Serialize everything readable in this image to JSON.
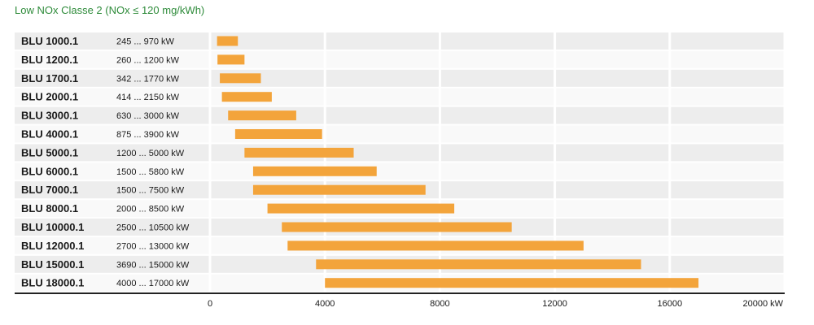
{
  "title": "Low NOx Classe 2 (NOx ≤ 120 mg/kWh)",
  "chart_data": {
    "type": "bar",
    "orientation": "horizontal",
    "variant": "floating-range",
    "title": "Low NOx Classe 2 (NOx ≤ 120 mg/kWh)",
    "unit": "kW",
    "xlim": [
      0,
      20000
    ],
    "x_ticks": [
      0,
      4000,
      8000,
      12000,
      16000,
      20000
    ],
    "x_tick_labels": [
      "0",
      "4000",
      "8000",
      "12000",
      "16000",
      "20000 kW"
    ],
    "bar_color": "#f3a43b",
    "categories": [
      "BLU 1000.1",
      "BLU 1200.1",
      "BLU 1700.1",
      "BLU 2000.1",
      "BLU 3000.1",
      "BLU 4000.1",
      "BLU 5000.1",
      "BLU 6000.1",
      "BLU 7000.1",
      "BLU 8000.1",
      "BLU 10000.1",
      "BLU 12000.1",
      "BLU 15000.1",
      "BLU 18000.1"
    ],
    "range_labels": [
      "245 ... 970 kW",
      "260 ... 1200 kW",
      "342 ... 1770 kW",
      "414 ... 2150 kW",
      "630 ... 3000 kW",
      "875 ... 3900 kW",
      "1200 ... 5000 kW",
      "1500 ... 5800 kW",
      "1500 ... 7500 kW",
      "2000 ... 8500 kW",
      "2500 ... 10500 kW",
      "2700 ... 13000 kW",
      "3690 ... 15000 kW",
      "4000 ... 17000 kW"
    ],
    "min": [
      245,
      260,
      342,
      414,
      630,
      875,
      1200,
      1500,
      1500,
      2000,
      2500,
      2700,
      3690,
      4000
    ],
    "max": [
      970,
      1200,
      1770,
      2150,
      3000,
      3900,
      5000,
      5800,
      7500,
      8500,
      10500,
      13000,
      15000,
      17000
    ],
    "grid": true,
    "legend": "none"
  }
}
